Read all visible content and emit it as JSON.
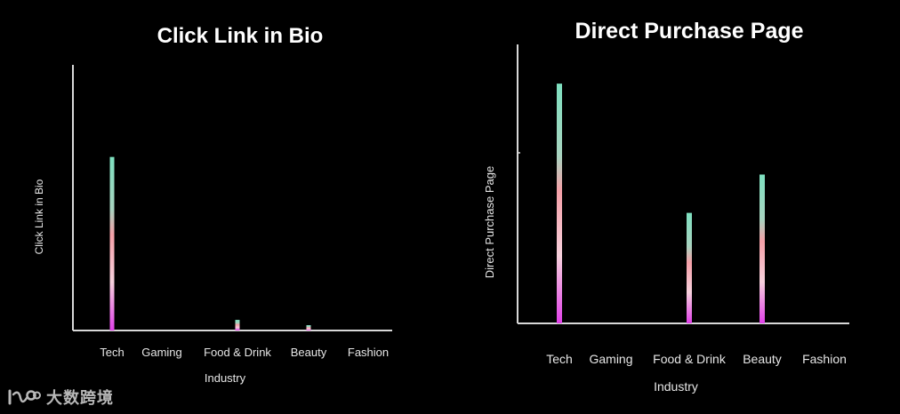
{
  "chart_data": [
    {
      "type": "bar",
      "title": "Click Link in Bio",
      "xlabel": "Industry",
      "ylabel": "Click Link in Bio",
      "categories": [
        "Tech",
        "Gaming",
        "Food & Drink",
        "Beauty",
        "Fashion"
      ],
      "values": [
        196,
        0,
        12,
        6,
        0
      ],
      "ylim": [
        0,
        300
      ],
      "grid": false,
      "legend": "none",
      "colors": {
        "bar_top": "#7ee0c0",
        "bar_mid": "#f5a0a8",
        "bar_bottom": "#e040e8",
        "axis": "#d8d8d8",
        "background": "#000000"
      }
    },
    {
      "type": "bar",
      "title": "Direct Purchase Page",
      "xlabel": "Industry",
      "ylabel": "Direct Purchase Page",
      "categories": [
        "Tech",
        "Gaming",
        "Food & Drink",
        "Beauty",
        "Fashion"
      ],
      "values": [
        269,
        0,
        124,
        167,
        0
      ],
      "ylim": [
        0,
        313
      ],
      "grid": false,
      "legend": "none",
      "colors": {
        "bar_top": "#7ee0c0",
        "bar_mid": "#f5a0a8",
        "bar_bottom": "#e040e8",
        "axis": "#d8d8d8",
        "background": "#000000"
      }
    }
  ],
  "watermark": {
    "text": "大数跨境",
    "icon": "watermark-logo-icon"
  }
}
